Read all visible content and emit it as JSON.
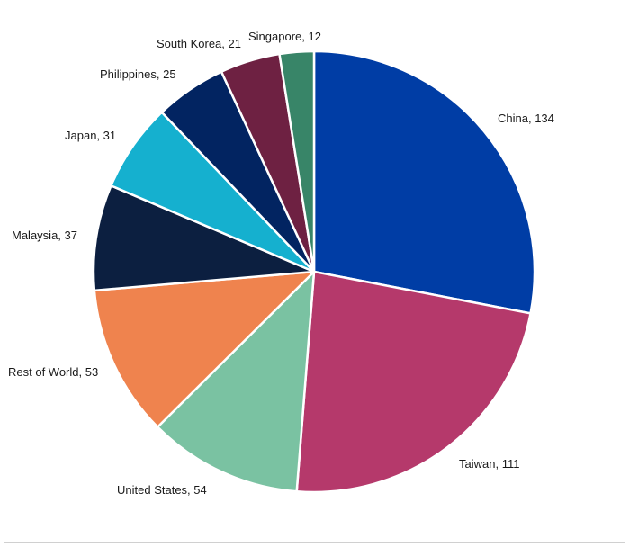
{
  "chart_data": {
    "type": "pie",
    "title": "",
    "legend": "none",
    "slices": [
      {
        "label": "China",
        "value": 134,
        "display": "China, 134",
        "color": "#003da5"
      },
      {
        "label": "Taiwan",
        "value": 111,
        "display": "Taiwan, 111",
        "color": "#b5396b"
      },
      {
        "label": "United States",
        "value": 54,
        "display": "United States, 54",
        "color": "#7ac2a2"
      },
      {
        "label": "Rest of World",
        "value": 53,
        "display": "Rest of World, 53",
        "color": "#ef834e"
      },
      {
        "label": "Malaysia",
        "value": 37,
        "display": "Malaysia, 37",
        "color": "#0c1f40"
      },
      {
        "label": "Japan",
        "value": 31,
        "display": "Japan, 31",
        "color": "#15b0cf"
      },
      {
        "label": "Philippines",
        "value": 25,
        "display": "Philippines, 25",
        "color": "#022461"
      },
      {
        "label": "South Korea",
        "value": 21,
        "display": "South Korea, 21",
        "color": "#6e2142"
      },
      {
        "label": "Singapore",
        "value": 12,
        "display": "Singapore, 12",
        "color": "#388568"
      }
    ]
  }
}
